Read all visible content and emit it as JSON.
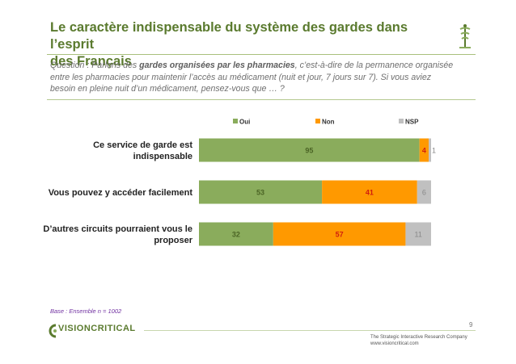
{
  "title_line1": "Le caractère indispensable du système des gardes dans l’esprit",
  "title_line2": "des Français",
  "question": {
    "prefix": "Question : Parlons des ",
    "bold": "gardes organisées par les pharmacies",
    "rest_line1": ", c’est-à-dire de la permanence organisée",
    "line2": "entre les pharmacies pour maintenir l’accès au médicament (nuit et jour, 7 jours sur 7). Si vous aviez",
    "line3": "besoin en pleine nuit d’un médicament, pensez-vous que … ?"
  },
  "footnote": "Base :  Ensemble n = 1002",
  "page_number": "9",
  "footer": {
    "brand": "VISIONCRITICAL",
    "tagline1": "The Strategic Interactive Research Company",
    "tagline2": "www.visioncritical.com"
  },
  "colors": {
    "oui": "#8aac5c",
    "non": "#ff9900",
    "nsp": "#c0c0c0",
    "title": "#5a7a2e"
  },
  "chart_data": {
    "type": "bar",
    "orientation": "horizontal",
    "stacked": true,
    "legend_position": "top",
    "categories": [
      [
        "Ce service de garde est",
        "indispensable"
      ],
      [
        "Vous pouvez y accéder facilement"
      ],
      [
        "D’autres circuits pourraient vous le",
        "proposer"
      ]
    ],
    "series": [
      {
        "name": "Oui",
        "values": [
          95,
          53,
          32
        ]
      },
      {
        "name": "Non",
        "values": [
          4,
          41,
          57
        ]
      },
      {
        "name": "NSP",
        "values": [
          1,
          6,
          11
        ]
      }
    ],
    "xlim": [
      0,
      100
    ],
    "grid": false
  }
}
